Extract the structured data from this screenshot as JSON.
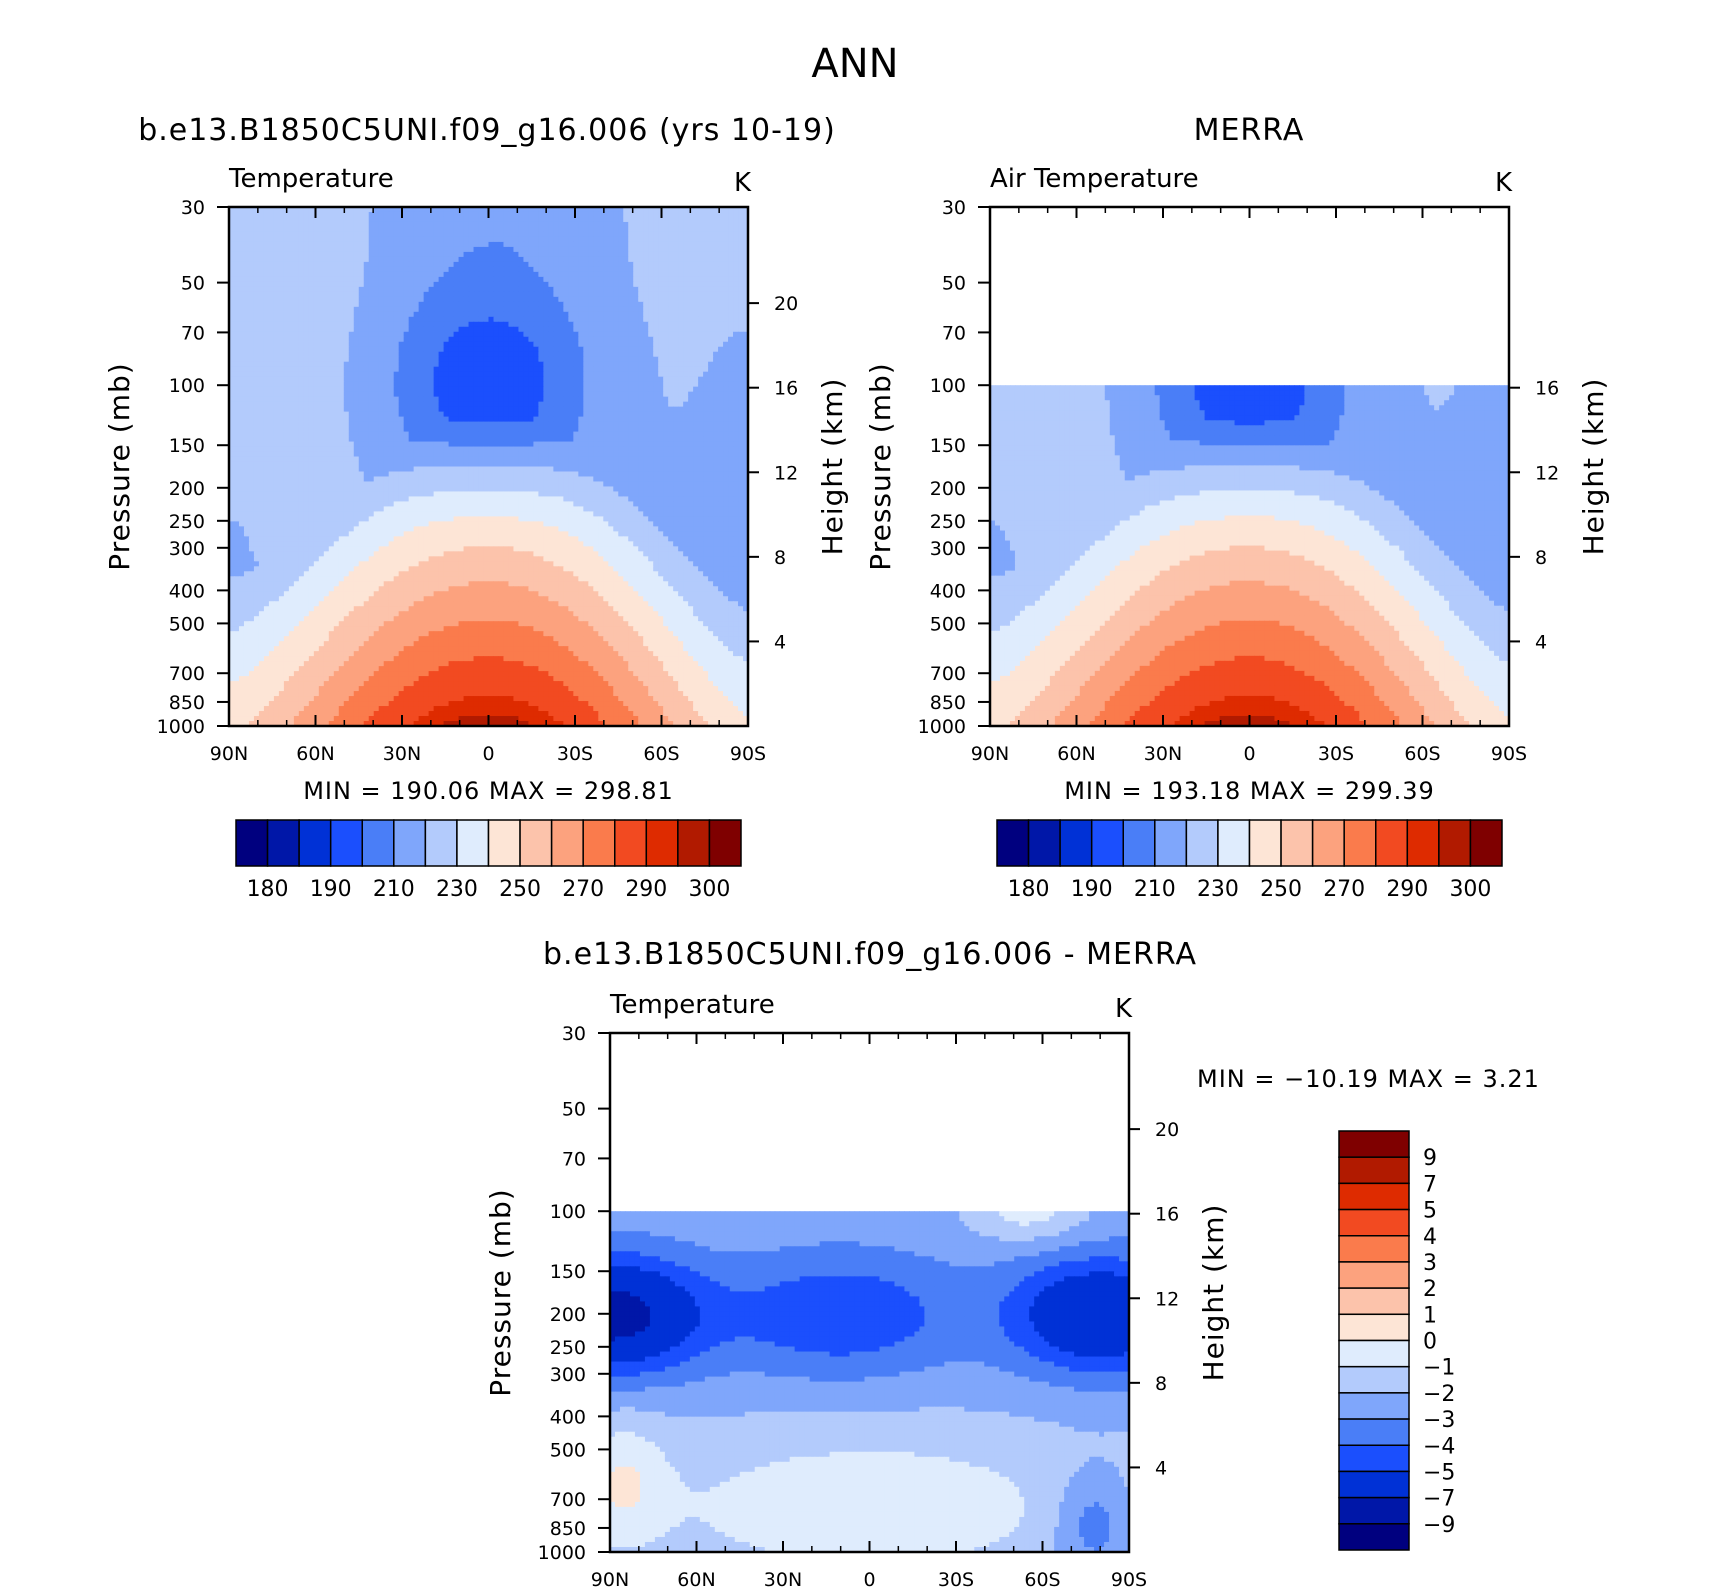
{
  "main_title": "ANN",
  "chart_data": [
    {
      "type": "contour",
      "title": "b.e13.B1850C5UNI.f09_g16.006 (yrs 10-19)",
      "left_string": "Temperature",
      "right_string": "K",
      "xlabel": "",
      "ylabel": "Pressure (mb)",
      "y2label": "Height (km)",
      "x_ticks": [
        "90N",
        "60N",
        "30N",
        "0",
        "30S",
        "60S",
        "90S"
      ],
      "y_ticks": [
        30,
        50,
        70,
        100,
        150,
        200,
        250,
        300,
        400,
        500,
        700,
        850,
        1000
      ],
      "y_scale": "log",
      "ylim": [
        1000,
        30
      ],
      "y2_ticks": [
        4,
        8,
        12,
        16,
        20
      ],
      "data_bottom_mb": 1000,
      "min_max": "MIN = 190.06   MAX = 298.81",
      "levels": [
        180,
        185,
        190,
        200,
        210,
        220,
        230,
        240,
        250,
        260,
        270,
        280,
        290,
        295,
        300
      ],
      "colorbar_labels": [
        "180",
        "190",
        "210",
        "230",
        "250",
        "270",
        "290",
        "300"
      ],
      "colorbar_orientation": "horizontal",
      "field": "annual zonal-mean temperature, warmest (~295-300 K) near the equatorial surface, coldest (~190 K) at the equatorial tropopause near 100 mb"
    },
    {
      "type": "contour",
      "title": "MERRA",
      "left_string": "Air Temperature",
      "right_string": "K",
      "xlabel": "",
      "ylabel": "Pressure (mb)",
      "y2label": "Height (km)",
      "x_ticks": [
        "90N",
        "60N",
        "30N",
        "0",
        "30S",
        "60S",
        "90S"
      ],
      "y_ticks": [
        30,
        50,
        70,
        100,
        150,
        200,
        250,
        300,
        400,
        500,
        700,
        850,
        1000
      ],
      "y_scale": "log",
      "ylim": [
        1000,
        30
      ],
      "y2_ticks": [
        4,
        8,
        12,
        16
      ],
      "data_top_mb": 100,
      "min_max": "MIN = 193.18   MAX = 299.39",
      "levels": [
        180,
        185,
        190,
        200,
        210,
        220,
        230,
        240,
        250,
        260,
        270,
        280,
        290,
        295,
        300
      ],
      "colorbar_labels": [
        "180",
        "190",
        "210",
        "230",
        "250",
        "270",
        "290",
        "300"
      ],
      "colorbar_orientation": "horizontal"
    },
    {
      "type": "contour",
      "title": "b.e13.B1850C5UNI.f09_g16.006 - MERRA",
      "left_string": "Temperature",
      "right_string": "K",
      "xlabel": "",
      "ylabel": "Pressure (mb)",
      "y2label": "Height (km)",
      "x_ticks": [
        "90N",
        "60N",
        "30N",
        "0",
        "30S",
        "60S",
        "90S"
      ],
      "y_ticks": [
        30,
        50,
        70,
        100,
        150,
        200,
        250,
        300,
        400,
        500,
        700,
        850,
        1000
      ],
      "y_scale": "log",
      "ylim": [
        1000,
        30
      ],
      "y2_ticks": [
        4,
        8,
        12,
        16,
        20
      ],
      "data_top_mb": 100,
      "min_max": "MIN = −10.19   MAX =    3.21",
      "levels": [
        -9,
        -7,
        -5,
        -4,
        -3,
        -2,
        -1,
        0,
        1,
        2,
        3,
        4,
        5,
        7,
        9
      ],
      "colorbar_labels": [
        "9",
        "7",
        "5",
        "4",
        "3",
        "2",
        "1",
        "0",
        "−1",
        "−2",
        "−3",
        "−4",
        "−5",
        "−7",
        "−9"
      ],
      "colorbar_orientation": "vertical"
    }
  ],
  "colors": {
    "temperature": [
      "#00007f",
      "#0017a8",
      "#0031d6",
      "#1b4ffd",
      "#4a7ef7",
      "#7fa6fb",
      "#b3cbfc",
      "#dfecfd",
      "#fde5d6",
      "#fcc3ab",
      "#fca27e",
      "#fa7b4c",
      "#f24a21",
      "#de2b00",
      "#b11a00",
      "#7f0000"
    ],
    "difference": [
      "#00007f",
      "#0017a8",
      "#0031d6",
      "#1b4ffd",
      "#4a7ef7",
      "#7fa6fb",
      "#b3cbfc",
      "#dfecfd",
      "#fde5d6",
      "#fcc3ab",
      "#fca27e",
      "#fa7b4c",
      "#f24a21",
      "#de2b00",
      "#b11a00",
      "#7f0000"
    ]
  }
}
